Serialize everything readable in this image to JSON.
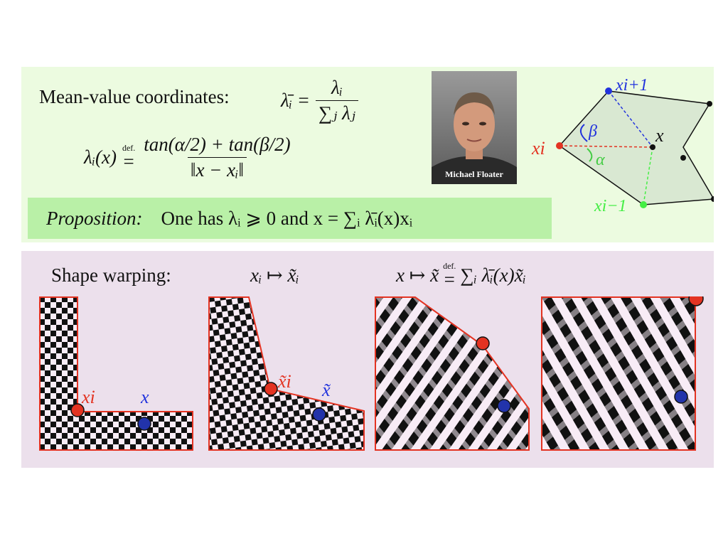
{
  "header": {
    "mv_label": "Mean-value coordinates:",
    "lambda_bar_i": "λ̄ᵢ =",
    "frac_num": "λᵢ",
    "frac_den": "∑ⱼ λⱼ",
    "lambda_x": "λᵢ(x)",
    "def": "def.",
    "eqsign": "=",
    "formula_num": "tan(α/2) + tan(β/2)",
    "formula_den": "‖x − xᵢ‖"
  },
  "proposition": {
    "label": "Proposition:",
    "text": "One has λᵢ ⩾ 0 and  x = ∑ᵢ λ̄ᵢ(x)xᵢ"
  },
  "photo": {
    "caption": "Michael Floater"
  },
  "diagram": {
    "x_next": "xi+1",
    "x_prev": "xi−1",
    "x_i": "xi",
    "x": "x",
    "beta": "β",
    "alpha": "α",
    "color_next": "#2233dd",
    "color_prev": "#44ee44",
    "color_i": "#e33322"
  },
  "warping": {
    "label": "Shape warping:",
    "map1": "xᵢ ↦ x̃ᵢ",
    "map2_lhs": "x ↦ x̃",
    "map2_rhs": "∑ᵢ λ̄ᵢ(x)x̃ᵢ",
    "fig1_xi": "xi",
    "fig1_x": "x",
    "fig2_xi": "x̃i",
    "fig2_x": "x̃"
  }
}
